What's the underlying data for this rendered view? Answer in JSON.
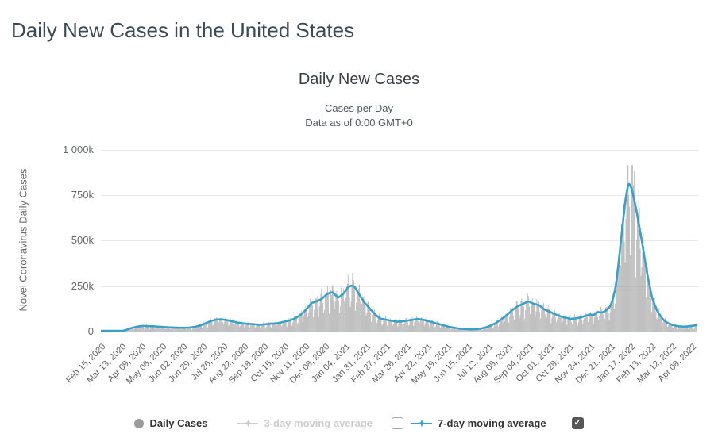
{
  "page": {
    "title": "Daily New Cases in the United States"
  },
  "chart_data": {
    "type": "bar+line",
    "title": "Daily New Cases",
    "subtitle_line1": "Cases per Day",
    "subtitle_line2": "Data as of 0:00 GMT+0",
    "y_axis_title": "Novel Coronavirus Daily Cases",
    "y_axis": {
      "unit": "k",
      "min": 0,
      "max": 1000,
      "tick_values": [
        0,
        250,
        500,
        750,
        1000
      ],
      "tick_labels": [
        "0",
        "250k",
        "500k",
        "750k",
        "1 000k"
      ]
    },
    "x_axis": {
      "total_days": 790,
      "tick_interval_days": 27,
      "tick_labels": [
        "Feb 15, 2020",
        "Mar 13, 2020",
        "Apr 09, 2020",
        "May 06, 2020",
        "Jun 02, 2020",
        "Jun 29, 2020",
        "Jul 26, 2020",
        "Aug 22, 2020",
        "Sep 18, 2020",
        "Oct 15, 2020",
        "Nov 11, 2020",
        "Dec 08, 2020",
        "Jan 04, 2021",
        "Jan 31, 2021",
        "Feb 27, 2021",
        "Mar 26, 2021",
        "Apr 22, 2021",
        "May 19, 2021",
        "Jun 15, 2021",
        "Jul 12, 2021",
        "Aug 08, 2021",
        "Sep 04, 2021",
        "Oct 01, 2021",
        "Oct 28, 2021",
        "Nov 24, 2021",
        "Dec 21, 2021",
        "Jan 17, 2022",
        "Feb 13, 2022",
        "Mar 12, 2022",
        "Apr 08, 2022"
      ]
    },
    "grid_color": "#e9e9e9",
    "baseline_color": "#d7dde2",
    "series": [
      {
        "name": "Daily Cases",
        "type": "bar",
        "color": "#a2a2a2",
        "visible": true,
        "start_weekday_index": 6,
        "weekday_multipliers": [
          0.52,
          0.74,
          1.06,
          1.13,
          1.13,
          1.1,
          0.86
        ],
        "max_bar_value_k": 915
      },
      {
        "name": "3-day moving average",
        "type": "line",
        "color": "#cccccc",
        "visible": false
      },
      {
        "name": "7-day moving average",
        "type": "line",
        "color": "#38a1cb",
        "visible": true,
        "anchors_day_value_k": [
          [
            0,
            0
          ],
          [
            15,
            0.3
          ],
          [
            27,
            2
          ],
          [
            34,
            10
          ],
          [
            41,
            20
          ],
          [
            48,
            27
          ],
          [
            55,
            31
          ],
          [
            62,
            30
          ],
          [
            69,
            29
          ],
          [
            76,
            27
          ],
          [
            83,
            25
          ],
          [
            90,
            23
          ],
          [
            97,
            22
          ],
          [
            104,
            21
          ],
          [
            111,
            21
          ],
          [
            118,
            22
          ],
          [
            125,
            26
          ],
          [
            132,
            34
          ],
          [
            139,
            46
          ],
          [
            146,
            58
          ],
          [
            153,
            66
          ],
          [
            160,
            67
          ],
          [
            167,
            63
          ],
          [
            174,
            56
          ],
          [
            181,
            50
          ],
          [
            188,
            45
          ],
          [
            195,
            42
          ],
          [
            202,
            41
          ],
          [
            209,
            37
          ],
          [
            216,
            39
          ],
          [
            223,
            43
          ],
          [
            230,
            44
          ],
          [
            237,
            48
          ],
          [
            244,
            56
          ],
          [
            251,
            62
          ],
          [
            258,
            74
          ],
          [
            265,
            93
          ],
          [
            272,
            122
          ],
          [
            279,
            157
          ],
          [
            286,
            166
          ],
          [
            293,
            181
          ],
          [
            300,
            208
          ],
          [
            307,
            217
          ],
          [
            314,
            185
          ],
          [
            321,
            207
          ],
          [
            328,
            245
          ],
          [
            332,
            253
          ],
          [
            336,
            247
          ],
          [
            342,
            205
          ],
          [
            349,
            160
          ],
          [
            356,
            127
          ],
          [
            363,
            95
          ],
          [
            370,
            71
          ],
          [
            377,
            66
          ],
          [
            384,
            60
          ],
          [
            391,
            55
          ],
          [
            398,
            55
          ],
          [
            405,
            60
          ],
          [
            412,
            64
          ],
          [
            419,
            69
          ],
          [
            426,
            66
          ],
          [
            433,
            58
          ],
          [
            440,
            50
          ],
          [
            447,
            42
          ],
          [
            454,
            34
          ],
          [
            461,
            26
          ],
          [
            468,
            21
          ],
          [
            475,
            16
          ],
          [
            482,
            14
          ],
          [
            489,
            12
          ],
          [
            496,
            13
          ],
          [
            503,
            16
          ],
          [
            510,
            23
          ],
          [
            517,
            34
          ],
          [
            524,
            49
          ],
          [
            531,
            69
          ],
          [
            538,
            92
          ],
          [
            545,
            118
          ],
          [
            552,
            139
          ],
          [
            559,
            152
          ],
          [
            566,
            166
          ],
          [
            573,
            153
          ],
          [
            580,
            146
          ],
          [
            587,
            122
          ],
          [
            594,
            110
          ],
          [
            601,
            96
          ],
          [
            608,
            85
          ],
          [
            615,
            76
          ],
          [
            622,
            70
          ],
          [
            629,
            72
          ],
          [
            636,
            78
          ],
          [
            643,
            88
          ],
          [
            648,
            95
          ],
          [
            652,
            88
          ],
          [
            658,
            108
          ],
          [
            663,
            104
          ],
          [
            668,
            112
          ],
          [
            674,
            135
          ],
          [
            678,
            175
          ],
          [
            682,
            250
          ],
          [
            686,
            390
          ],
          [
            690,
            545
          ],
          [
            695,
            735
          ],
          [
            699,
            818
          ],
          [
            703,
            788
          ],
          [
            709,
            672
          ],
          [
            716,
            510
          ],
          [
            723,
            330
          ],
          [
            730,
            185
          ],
          [
            737,
            112
          ],
          [
            744,
            68
          ],
          [
            751,
            46
          ],
          [
            758,
            35
          ],
          [
            765,
            29
          ],
          [
            772,
            27
          ],
          [
            779,
            29
          ],
          [
            786,
            33
          ],
          [
            789,
            36
          ]
        ]
      }
    ]
  },
  "legend": {
    "daily_cases_label": "Daily Cases",
    "three_day_label": "3-day moving average",
    "three_day_checked": false,
    "seven_day_label": "7-day moving average",
    "seven_day_checked": true,
    "check_glyph": "✓"
  }
}
